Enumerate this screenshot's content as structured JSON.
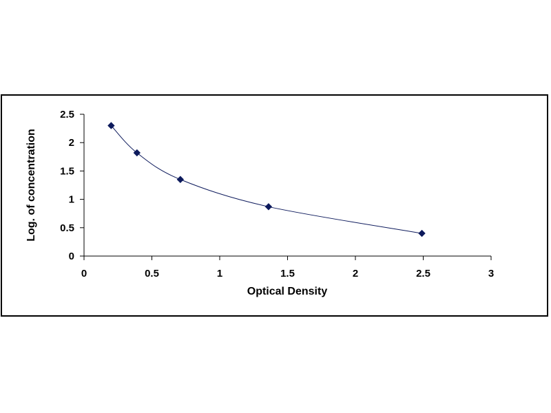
{
  "chart_data": {
    "type": "scatter",
    "title": "",
    "xlabel": "Optical Density",
    "ylabel": "Log. of concentration",
    "xlim": [
      0,
      3
    ],
    "ylim": [
      0,
      2.5
    ],
    "x_ticks": [
      "0",
      "0.5",
      "1",
      "1.5",
      "2",
      "2.5",
      "3"
    ],
    "y_ticks": [
      "0",
      "0.5",
      "1",
      "1.5",
      "2",
      "2.5"
    ],
    "grid": false,
    "legend": "none",
    "trendline": "smooth curve through points",
    "marker": "diamond",
    "color": "#0d1a5c",
    "series": [
      {
        "x": [
          0.2,
          0.39,
          0.71,
          1.36,
          2.49
        ],
        "y": [
          2.3,
          1.82,
          1.35,
          0.87,
          0.4
        ]
      }
    ]
  }
}
